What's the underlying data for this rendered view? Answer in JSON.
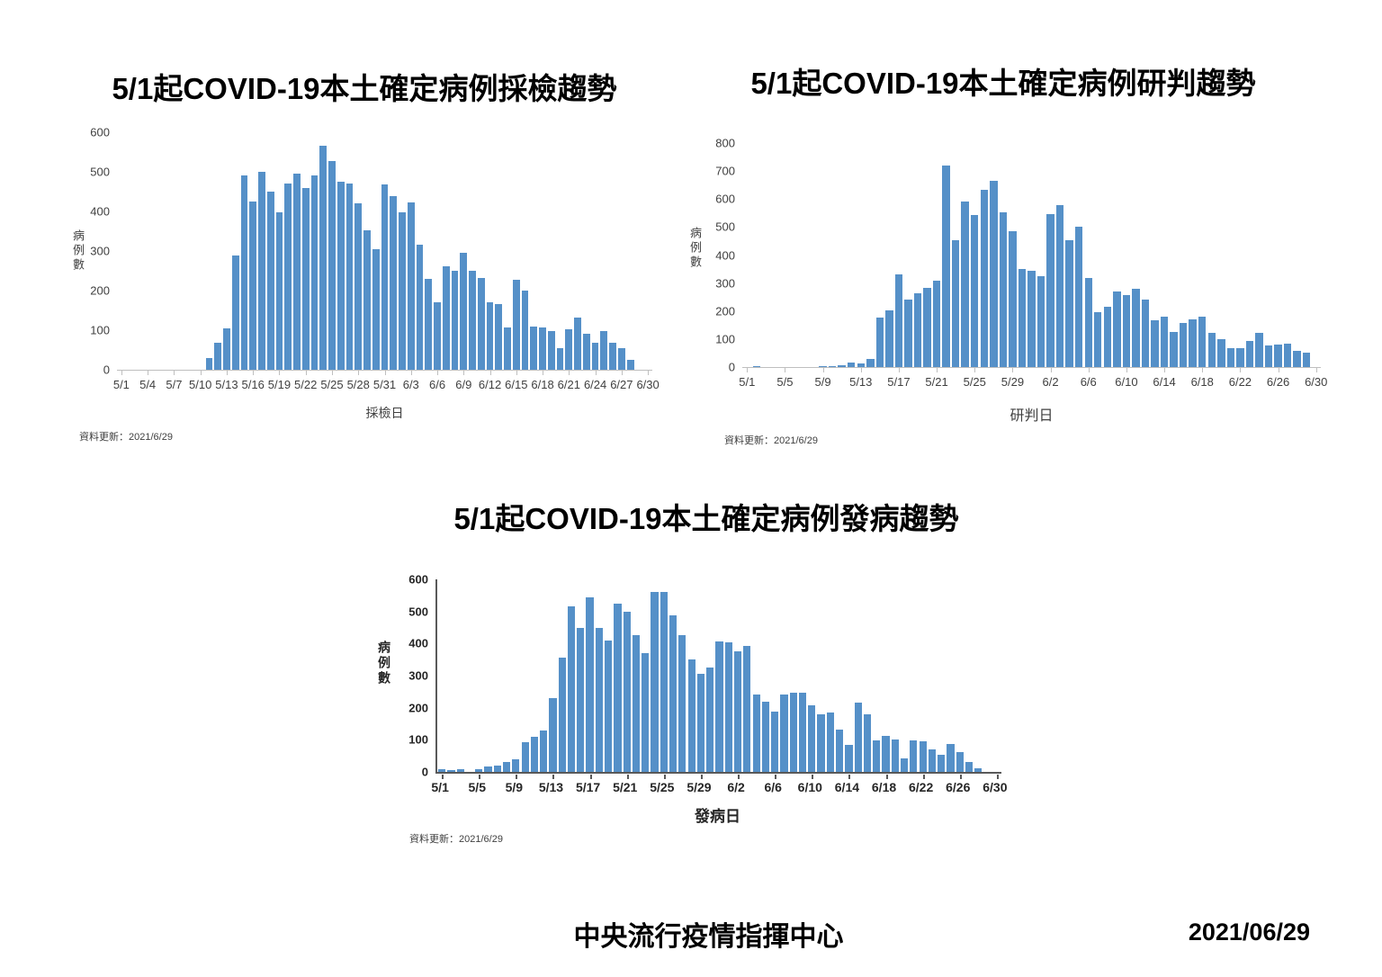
{
  "footer": {
    "center": "中央流行疫情指揮中心",
    "right": "2021/06/29"
  },
  "chart_data": [
    {
      "type": "bar",
      "title": "5/1起COVID-19本土確定病例採檢趨勢",
      "ylabel": "病例數",
      "xlabel": "採檢日",
      "update_note": "資料更新：2021/6/29",
      "bar_color": "#5590C8",
      "grid": false,
      "ylim": [
        0,
        600
      ],
      "ytick_step": 100,
      "xtick_interval": 3,
      "xticks": [
        "5/1",
        "5/4",
        "5/7",
        "5/10",
        "5/13",
        "5/16",
        "5/19",
        "5/22",
        "5/25",
        "5/28",
        "5/31",
        "6/3",
        "6/6",
        "6/9",
        "6/12",
        "6/15",
        "6/18",
        "6/21",
        "6/24",
        "6/27",
        "6/30"
      ],
      "x": [
        "5/1",
        "5/2",
        "5/3",
        "5/4",
        "5/5",
        "5/6",
        "5/7",
        "5/8",
        "5/9",
        "5/10",
        "5/11",
        "5/12",
        "5/13",
        "5/14",
        "5/15",
        "5/16",
        "5/17",
        "5/18",
        "5/19",
        "5/20",
        "5/21",
        "5/22",
        "5/23",
        "5/24",
        "5/25",
        "5/26",
        "5/27",
        "5/28",
        "5/29",
        "5/30",
        "5/31",
        "6/1",
        "6/2",
        "6/3",
        "6/4",
        "6/5",
        "6/6",
        "6/7",
        "6/8",
        "6/9",
        "6/10",
        "6/11",
        "6/12",
        "6/13",
        "6/14",
        "6/15",
        "6/16",
        "6/17",
        "6/18",
        "6/19",
        "6/20",
        "6/21",
        "6/22",
        "6/23",
        "6/24",
        "6/25",
        "6/26",
        "6/27",
        "6/28",
        "6/29",
        "6/30"
      ],
      "values": [
        0,
        0,
        0,
        0,
        0,
        0,
        0,
        0,
        0,
        0,
        30,
        68,
        105,
        288,
        490,
        425,
        500,
        450,
        398,
        470,
        495,
        460,
        490,
        565,
        527,
        475,
        470,
        420,
        352,
        305,
        469,
        438,
        397,
        423,
        317,
        230,
        171,
        261,
        250,
        296,
        250,
        232,
        171,
        165,
        106,
        227,
        199,
        108,
        106,
        98,
        55,
        103,
        132,
        90,
        68,
        98,
        68,
        55,
        24,
        0,
        0
      ]
    },
    {
      "type": "bar",
      "title": "5/1起COVID-19本土確定病例研判趨勢",
      "ylabel": "病例數",
      "xlabel": "研判日",
      "update_note": "資料更新：2021/6/29",
      "bar_color": "#5590C8",
      "grid": false,
      "ylim": [
        0,
        800
      ],
      "ytick_step": 100,
      "xtick_interval": 4,
      "xticks": [
        "5/1",
        "5/5",
        "5/9",
        "5/13",
        "5/17",
        "5/21",
        "5/25",
        "5/29",
        "6/2",
        "6/6",
        "6/10",
        "6/14",
        "6/18",
        "6/22",
        "6/26",
        "6/30"
      ],
      "x": [
        "5/1",
        "5/2",
        "5/3",
        "5/4",
        "5/5",
        "5/6",
        "5/7",
        "5/8",
        "5/9",
        "5/10",
        "5/11",
        "5/12",
        "5/13",
        "5/14",
        "5/15",
        "5/16",
        "5/17",
        "5/18",
        "5/19",
        "5/20",
        "5/21",
        "5/22",
        "5/23",
        "5/24",
        "5/25",
        "5/26",
        "5/27",
        "5/28",
        "5/29",
        "5/30",
        "5/31",
        "6/1",
        "6/2",
        "6/3",
        "6/4",
        "6/5",
        "6/6",
        "6/7",
        "6/8",
        "6/9",
        "6/10",
        "6/11",
        "6/12",
        "6/13",
        "6/14",
        "6/15",
        "6/16",
        "6/17",
        "6/18",
        "6/19",
        "6/20",
        "6/21",
        "6/22",
        "6/23",
        "6/24",
        "6/25",
        "6/26",
        "6/27",
        "6/28",
        "6/29",
        "6/30"
      ],
      "values": [
        0,
        4,
        0,
        0,
        0,
        0,
        0,
        0,
        2,
        4,
        8,
        15,
        13,
        29,
        177,
        203,
        332,
        240,
        265,
        283,
        310,
        720,
        453,
        592,
        542,
        633,
        665,
        552,
        484,
        350,
        343,
        324,
        545,
        578,
        454,
        502,
        318,
        197,
        215,
        269,
        256,
        280,
        242,
        168,
        181,
        126,
        159,
        170,
        181,
        123,
        99,
        67,
        69,
        94,
        123,
        76,
        80,
        85,
        58,
        50,
        0
      ]
    },
    {
      "type": "bar",
      "title": "5/1起COVID-19本土確定病例發病趨勢",
      "ylabel": "病例數",
      "xlabel": "發病日",
      "update_note": "資料更新：2021/6/29",
      "bar_color": "#5590C8",
      "grid": false,
      "ylim": [
        0,
        600
      ],
      "ytick_step": 100,
      "xtick_interval": 4,
      "xticks": [
        "5/1",
        "5/5",
        "5/9",
        "5/13",
        "5/17",
        "5/21",
        "5/25",
        "5/29",
        "6/2",
        "6/6",
        "6/10",
        "6/14",
        "6/18",
        "6/22",
        "6/26",
        "6/30"
      ],
      "x": [
        "5/1",
        "5/2",
        "5/3",
        "5/4",
        "5/5",
        "5/6",
        "5/7",
        "5/8",
        "5/9",
        "5/10",
        "5/11",
        "5/12",
        "5/13",
        "5/14",
        "5/15",
        "5/16",
        "5/17",
        "5/18",
        "5/19",
        "5/20",
        "5/21",
        "5/22",
        "5/23",
        "5/24",
        "5/25",
        "5/26",
        "5/27",
        "5/28",
        "5/29",
        "5/30",
        "5/31",
        "6/1",
        "6/2",
        "6/3",
        "6/4",
        "6/5",
        "6/6",
        "6/7",
        "6/8",
        "6/9",
        "6/10",
        "6/11",
        "6/12",
        "6/13",
        "6/14",
        "6/15",
        "6/16",
        "6/17",
        "6/18",
        "6/19",
        "6/20",
        "6/21",
        "6/22",
        "6/23",
        "6/24",
        "6/25",
        "6/26",
        "6/27",
        "6/28",
        "6/29",
        "6/30"
      ],
      "values": [
        9,
        6,
        8,
        0,
        8,
        18,
        19,
        32,
        40,
        93,
        110,
        129,
        230,
        356,
        516,
        450,
        544,
        450,
        408,
        525,
        498,
        427,
        370,
        560,
        560,
        489,
        427,
        350,
        305,
        326,
        406,
        403,
        375,
        392,
        242,
        218,
        187,
        242,
        248,
        246,
        207,
        179,
        185,
        132,
        84,
        215,
        179,
        98,
        113,
        101,
        41,
        98,
        96,
        70,
        54,
        86,
        61,
        30,
        11,
        0,
        0
      ]
    }
  ]
}
